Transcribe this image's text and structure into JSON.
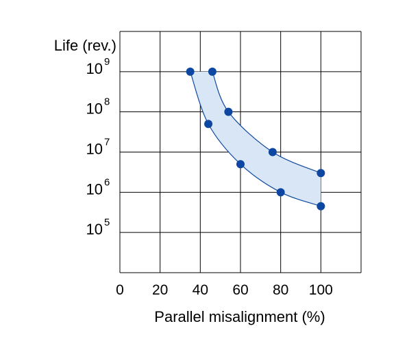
{
  "chart_data": {
    "type": "scatter",
    "title": "",
    "xlabel": "Parallel misalignment (%)",
    "ylabel": "Life (rev.)",
    "xlim": [
      0,
      120
    ],
    "ylim": [
      10000,
      10000000000
    ],
    "y_scale": "log",
    "x_ticks": [
      0,
      20,
      40,
      60,
      80,
      100
    ],
    "y_ticks": [
      100000,
      1000000,
      10000000,
      100000000,
      1000000000
    ],
    "y_tick_labels": [
      {
        "base": "10",
        "exp": "5"
      },
      {
        "base": "10",
        "exp": "6"
      },
      {
        "base": "10",
        "exp": "7"
      },
      {
        "base": "10",
        "exp": "8"
      },
      {
        "base": "10",
        "exp": "9"
      }
    ],
    "grid": true,
    "colors": {
      "marker": "#0d47a1",
      "band_fill": "#d8e6f5",
      "band_edge": "#0d47a1"
    },
    "series": [
      {
        "values_x": [
          46,
          54,
          76,
          100
        ],
        "values_y": [
          1000000000,
          100000000,
          10000000,
          3000000
        ]
      },
      {
        "values_x": [
          35,
          44,
          60,
          80,
          100
        ],
        "values_y": [
          1000000000,
          50000000,
          5000000,
          1000000,
          450000
        ]
      }
    ]
  }
}
